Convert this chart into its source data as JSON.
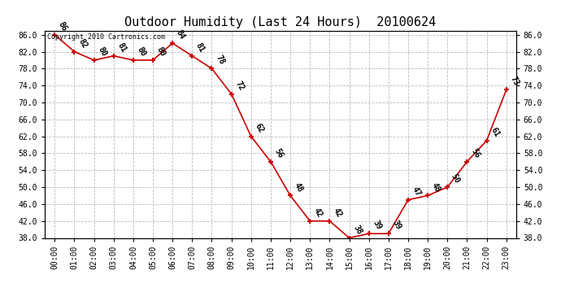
{
  "title": "Outdoor Humidity (Last 24 Hours)  20100624",
  "copyright": "Copyright 2010 Cartronics.com",
  "times": [
    "00:00",
    "01:00",
    "02:00",
    "03:00",
    "04:00",
    "05:00",
    "06:00",
    "07:00",
    "08:00",
    "09:00",
    "10:00",
    "11:00",
    "12:00",
    "13:00",
    "14:00",
    "15:00",
    "16:00",
    "17:00",
    "18:00",
    "19:00",
    "20:00",
    "21:00",
    "22:00",
    "23:00"
  ],
  "values": [
    86,
    82,
    80,
    81,
    80,
    80,
    84,
    81,
    78,
    72,
    62,
    56,
    48,
    42,
    42,
    38,
    39,
    39,
    47,
    48,
    50,
    56,
    61,
    73
  ],
  "line_color": "#cc0000",
  "marker_color": "#cc0000",
  "bg_color": "#ffffff",
  "grid_color": "#bbbbbb",
  "ylim_min": 38.0,
  "ylim_max": 86.0,
  "ytick_step": 4.0,
  "title_fontsize": 11,
  "tick_fontsize": 7,
  "annot_fontsize": 7,
  "copyright_fontsize": 6
}
